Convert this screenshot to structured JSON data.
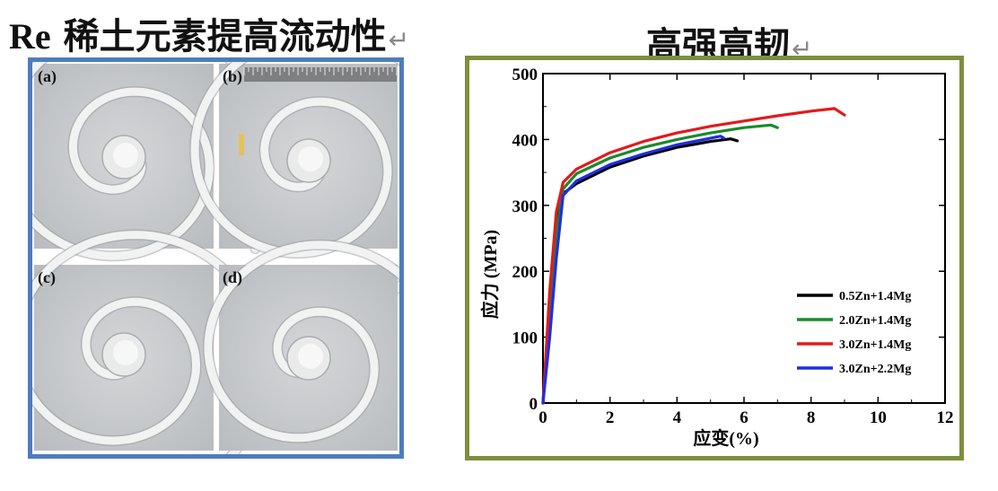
{
  "titles": {
    "left_prefix": "Re",
    "left_rest": " 稀土元素提高流动性",
    "right": "高强高韧",
    "return_mark": "↵"
  },
  "photos": {
    "panel_labels": [
      "(a)",
      "(b)",
      "(c)",
      "(d)"
    ]
  },
  "colors": {
    "left_border": "#4f7cbf",
    "right_border": "#7d8f3c"
  },
  "chart_data": {
    "type": "line",
    "title": "",
    "xlabel": "应变(%)",
    "ylabel": "应力 (MPa)",
    "xlim": [
      0,
      12
    ],
    "ylim": [
      0,
      500
    ],
    "xticks": [
      0,
      2,
      4,
      6,
      8,
      10,
      12
    ],
    "yticks": [
      0,
      100,
      200,
      300,
      400,
      500
    ],
    "legend_position": "bottom-right",
    "grid": false,
    "series": [
      {
        "name": "0.5Zn+1.4Mg",
        "color": "#000000",
        "x": [
          0,
          0.2,
          0.4,
          0.6,
          1.0,
          2.0,
          3.0,
          4.0,
          5.0,
          5.6,
          5.8
        ],
        "y": [
          0,
          150,
          270,
          318,
          333,
          358,
          375,
          388,
          397,
          401,
          398
        ]
      },
      {
        "name": "2.0Zn+1.4Mg",
        "color": "#1a8a2a",
        "x": [
          0,
          0.2,
          0.4,
          0.6,
          1.0,
          2.0,
          3.0,
          4.0,
          5.0,
          6.0,
          6.8,
          7.0
        ],
        "y": [
          0,
          140,
          255,
          325,
          348,
          372,
          388,
          400,
          410,
          418,
          422,
          418
        ]
      },
      {
        "name": "3.0Zn+1.4Mg",
        "color": "#e31a1c",
        "x": [
          0,
          0.2,
          0.4,
          0.6,
          1.0,
          2.0,
          3.0,
          4.0,
          5.0,
          6.0,
          7.0,
          8.0,
          8.7,
          9.0
        ],
        "y": [
          0,
          170,
          290,
          335,
          355,
          380,
          397,
          410,
          420,
          428,
          436,
          443,
          447,
          437
        ]
      },
      {
        "name": "3.0Zn+2.2Mg",
        "color": "#1f2ee0",
        "x": [
          0,
          0.2,
          0.4,
          0.6,
          1.0,
          2.0,
          3.0,
          4.0,
          4.8,
          5.3,
          5.4
        ],
        "y": [
          0,
          100,
          220,
          315,
          337,
          362,
          378,
          392,
          400,
          405,
          402
        ]
      }
    ]
  }
}
